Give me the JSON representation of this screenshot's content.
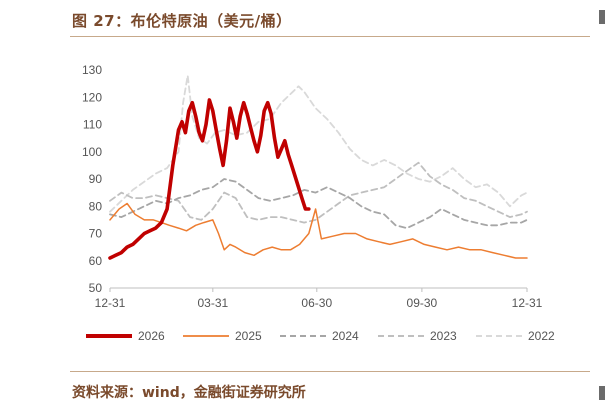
{
  "header": {
    "title": "图 27：布伦特原油（美元/桶）"
  },
  "footer": {
    "source": "资料来源：wind，金融街证券研究所"
  },
  "colors": {
    "s2026": "#c00000",
    "s2025": "#ed7d31",
    "s2024": "#a6a6a6",
    "s2023": "#bfbfbf",
    "s2022": "#d9d9d9",
    "axis": "#bfbfbf",
    "title": "#7a4a2c"
  },
  "chart_data": {
    "type": "line",
    "title": "布伦特原油（美元/桶）",
    "xlabel": "",
    "ylabel": "",
    "xlim": [
      0,
      365
    ],
    "ylim": [
      50,
      130
    ],
    "y_ticks": [
      50,
      60,
      70,
      80,
      90,
      100,
      110,
      120,
      130
    ],
    "x_ticks": [
      {
        "day": 0,
        "label": "12-31"
      },
      {
        "day": 90,
        "label": "03-31"
      },
      {
        "day": 181,
        "label": "06-30"
      },
      {
        "day": 273,
        "label": "09-30"
      },
      {
        "day": 365,
        "label": "12-31"
      }
    ],
    "grid": false,
    "legend_position": "bottom",
    "series": [
      {
        "name": "2026",
        "style": "solid-thick",
        "x": [
          0,
          5,
          10,
          15,
          20,
          25,
          30,
          35,
          40,
          45,
          50,
          55,
          60,
          63,
          66,
          69,
          72,
          75,
          78,
          81,
          84,
          87,
          90,
          93,
          96,
          99,
          102,
          105,
          108,
          111,
          114,
          117,
          120,
          123,
          126,
          129,
          132,
          135,
          138,
          141,
          144,
          147,
          150,
          153,
          156,
          159,
          162,
          165,
          168,
          171,
          174
        ],
        "values": [
          61,
          62,
          63,
          65,
          66,
          68,
          70,
          71,
          72,
          74,
          79,
          95,
          108,
          111,
          107,
          115,
          118,
          113,
          107,
          104,
          110,
          119,
          115,
          108,
          101,
          95,
          104,
          116,
          111,
          105,
          113,
          118,
          114,
          109,
          104,
          100,
          106,
          115,
          118,
          114,
          105,
          98,
          101,
          104,
          99,
          95,
          91,
          87,
          83,
          79,
          79
        ]
      },
      {
        "name": "2025",
        "style": "solid",
        "x": [
          0,
          8,
          15,
          22,
          30,
          38,
          45,
          52,
          60,
          67,
          75,
          82,
          90,
          95,
          100,
          105,
          110,
          118,
          126,
          134,
          142,
          150,
          158,
          166,
          174,
          180,
          185,
          195,
          205,
          215,
          225,
          235,
          245,
          255,
          265,
          275,
          285,
          295,
          305,
          315,
          325,
          335,
          345,
          355,
          365
        ],
        "values": [
          75,
          79,
          81,
          77,
          75,
          75,
          74,
          73,
          72,
          71,
          73,
          74,
          75,
          70,
          64,
          66,
          65,
          63,
          62,
          64,
          65,
          64,
          64,
          66,
          70,
          79,
          68,
          69,
          70,
          70,
          68,
          67,
          66,
          67,
          68,
          66,
          65,
          64,
          65,
          64,
          64,
          63,
          62,
          61,
          61
        ]
      },
      {
        "name": "2024",
        "style": "dashed",
        "x": [
          0,
          10,
          20,
          30,
          40,
          50,
          60,
          70,
          80,
          90,
          100,
          110,
          120,
          130,
          140,
          150,
          160,
          170,
          180,
          190,
          200,
          210,
          220,
          230,
          240,
          250,
          260,
          270,
          280,
          290,
          300,
          310,
          320,
          330,
          340,
          350,
          360,
          365
        ],
        "values": [
          77,
          76,
          78,
          80,
          82,
          81,
          83,
          84,
          86,
          87,
          90,
          89,
          86,
          83,
          82,
          83,
          84,
          86,
          85,
          87,
          85,
          83,
          80,
          78,
          77,
          73,
          72,
          74,
          76,
          79,
          77,
          75,
          74,
          73,
          73,
          74,
          74,
          75
        ]
      },
      {
        "name": "2023",
        "style": "dashed",
        "x": [
          0,
          10,
          20,
          30,
          40,
          50,
          60,
          70,
          80,
          90,
          100,
          110,
          120,
          130,
          140,
          150,
          160,
          170,
          180,
          190,
          200,
          210,
          220,
          230,
          240,
          250,
          260,
          270,
          280,
          290,
          300,
          310,
          320,
          330,
          340,
          350,
          360,
          365
        ],
        "values": [
          82,
          85,
          83,
          83,
          84,
          83,
          82,
          76,
          75,
          79,
          85,
          83,
          76,
          75,
          76,
          76,
          75,
          74,
          75,
          78,
          81,
          84,
          85,
          86,
          87,
          90,
          93,
          96,
          91,
          88,
          86,
          83,
          82,
          80,
          78,
          76,
          77,
          78
        ]
      },
      {
        "name": "2022",
        "style": "dashed",
        "x": [
          0,
          10,
          20,
          30,
          40,
          50,
          60,
          64,
          68,
          72,
          78,
          85,
          92,
          100,
          110,
          120,
          130,
          140,
          150,
          160,
          165,
          170,
          175,
          180,
          190,
          200,
          210,
          220,
          230,
          240,
          250,
          260,
          270,
          280,
          290,
          300,
          310,
          320,
          330,
          340,
          350,
          355,
          360,
          365
        ],
        "values": [
          78,
          82,
          86,
          89,
          92,
          94,
          100,
          118,
          128,
          113,
          105,
          103,
          107,
          108,
          106,
          107,
          111,
          112,
          118,
          122,
          124,
          122,
          119,
          116,
          112,
          107,
          101,
          97,
          95,
          97,
          95,
          92,
          90,
          89,
          91,
          94,
          90,
          87,
          88,
          85,
          80,
          82,
          84,
          85
        ]
      }
    ]
  }
}
